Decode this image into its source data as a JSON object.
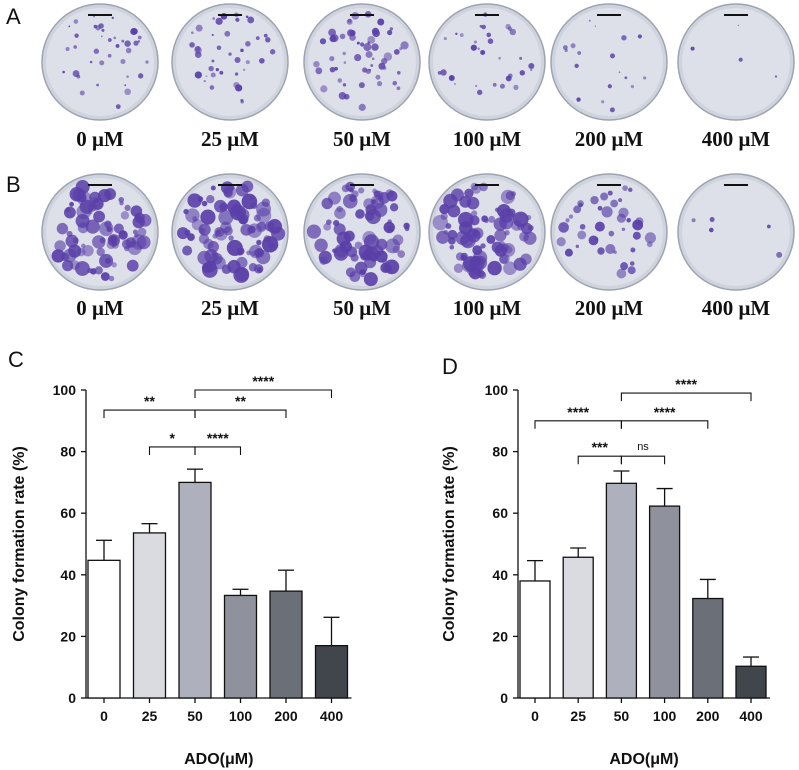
{
  "panels_photo": [
    {
      "letter": "A",
      "labels": [
        "0 μM",
        "25 μM",
        "50 μM",
        "100 μM",
        "200 μM",
        "400 μM"
      ],
      "density": [
        0.55,
        0.6,
        0.8,
        0.45,
        0.25,
        0.05
      ]
    },
    {
      "letter": "B",
      "labels": [
        "0 μM",
        "25 μM",
        "50 μM",
        "100 μM",
        "200 μM",
        "400 μM"
      ],
      "density": [
        0.85,
        0.95,
        0.85,
        0.9,
        0.45,
        0.06
      ]
    }
  ],
  "colors": {
    "dish_bg": "#cfd3de",
    "colony": "#5a3fa8",
    "bar_fills": [
      "#ffffff",
      "#d9dbe0",
      "#aeb1bd",
      "#8f929c",
      "#6b6f78",
      "#41454c"
    ]
  },
  "chart_data": [
    {
      "type": "bar",
      "panel": "C",
      "categories": [
        "0",
        "25",
        "50",
        "100",
        "200",
        "400"
      ],
      "values": [
        44.7,
        53.6,
        70.0,
        33.3,
        34.7,
        17.0
      ],
      "errors": [
        6.5,
        3.0,
        4.3,
        2.0,
        6.8,
        9.2
      ],
      "xlabel": "ADO(μM)",
      "ylabel": "Colony formation rate (%)",
      "ylim": [
        0,
        100
      ],
      "yticks": [
        0,
        20,
        40,
        60,
        80,
        100
      ],
      "brackets": [
        {
          "from": 2,
          "to": 0,
          "label": "**",
          "level": 93.5
        },
        {
          "from": 2,
          "to": 1,
          "label": "*",
          "level": 81.5
        },
        {
          "from": 2,
          "to": 3,
          "label": "****",
          "level": 81.5
        },
        {
          "from": 2,
          "to": 4,
          "label": "**",
          "level": 93.5
        },
        {
          "from": 2,
          "to": 5,
          "label": "****",
          "level": 100
        }
      ]
    },
    {
      "type": "bar",
      "panel": "D",
      "categories": [
        "0",
        "25",
        "50",
        "100",
        "200",
        "400"
      ],
      "values": [
        38.0,
        45.7,
        69.7,
        62.3,
        32.3,
        10.3
      ],
      "errors": [
        6.6,
        3.0,
        4.0,
        5.7,
        6.2,
        3.0
      ],
      "xlabel": "ADO(μM)",
      "ylabel": "Colony formation rate (%)",
      "ylim": [
        0,
        100
      ],
      "yticks": [
        0,
        20,
        40,
        60,
        80,
        100
      ],
      "brackets": [
        {
          "from": 2,
          "to": 0,
          "label": "****",
          "level": 90
        },
        {
          "from": 2,
          "to": 1,
          "label": "***",
          "level": 78.5
        },
        {
          "from": 2,
          "to": 3,
          "label": "ns",
          "level": 78.5
        },
        {
          "from": 2,
          "to": 4,
          "label": "****",
          "level": 90
        },
        {
          "from": 2,
          "to": 5,
          "label": "****",
          "level": 99
        }
      ]
    }
  ]
}
